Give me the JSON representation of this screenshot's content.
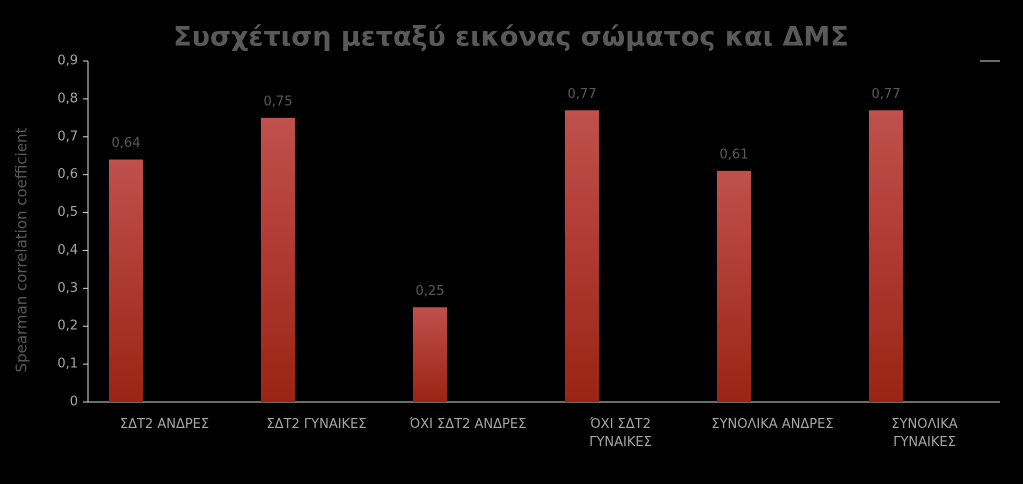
{
  "chart_data": {
    "type": "bar",
    "title": "Συσχέτιση μεταξύ εικόνας σώματος και ΔΜΣ",
    "y_label": "Spearman correlation coefficient",
    "categories": [
      "ΣΔΤ2 ΑΝΔΡΕΣ",
      "ΣΔΤ2 ΓΥΝΑΙΚΕΣ",
      "ΌΧΙ ΣΔΤ2 ΑΝΔΡΕΣ",
      "ΌΧΙ ΣΔΤ2 ΓΥΝΑΙΚΕΣ",
      "ΣΥΝΟΛΙΚΑ ΑΝΔΡΕΣ",
      "ΣΥΝΟΛΙΚΑ ΓΥΝΑΙΚΕΣ"
    ],
    "values": [
      0.64,
      0.75,
      0.25,
      0.77,
      0.61,
      0.77
    ],
    "value_labels": [
      "0,64",
      "0,75",
      "0,25",
      "0,77",
      "0,61",
      "0,77"
    ],
    "color": "#c0504d",
    "ylim": [
      0,
      0.9
    ],
    "yticks": [
      0,
      {
        "value": 0.1,
        "label": "0,1"
      },
      {
        "value": 0.2,
        "label": "0,2"
      },
      {
        "value": 0.3,
        "label": "0,3"
      },
      {
        "value": 0.4,
        "label": "0,4"
      },
      {
        "value": 0.5,
        "label": "0,5"
      },
      {
        "value": 0.6,
        "label": "0,6"
      },
      {
        "value": 0.7,
        "label": "0,7"
      },
      {
        "value": 0.8,
        "label": "0,8"
      },
      {
        "value": 0.9,
        "label": "0,9"
      }
    ],
    "grid": false
  }
}
